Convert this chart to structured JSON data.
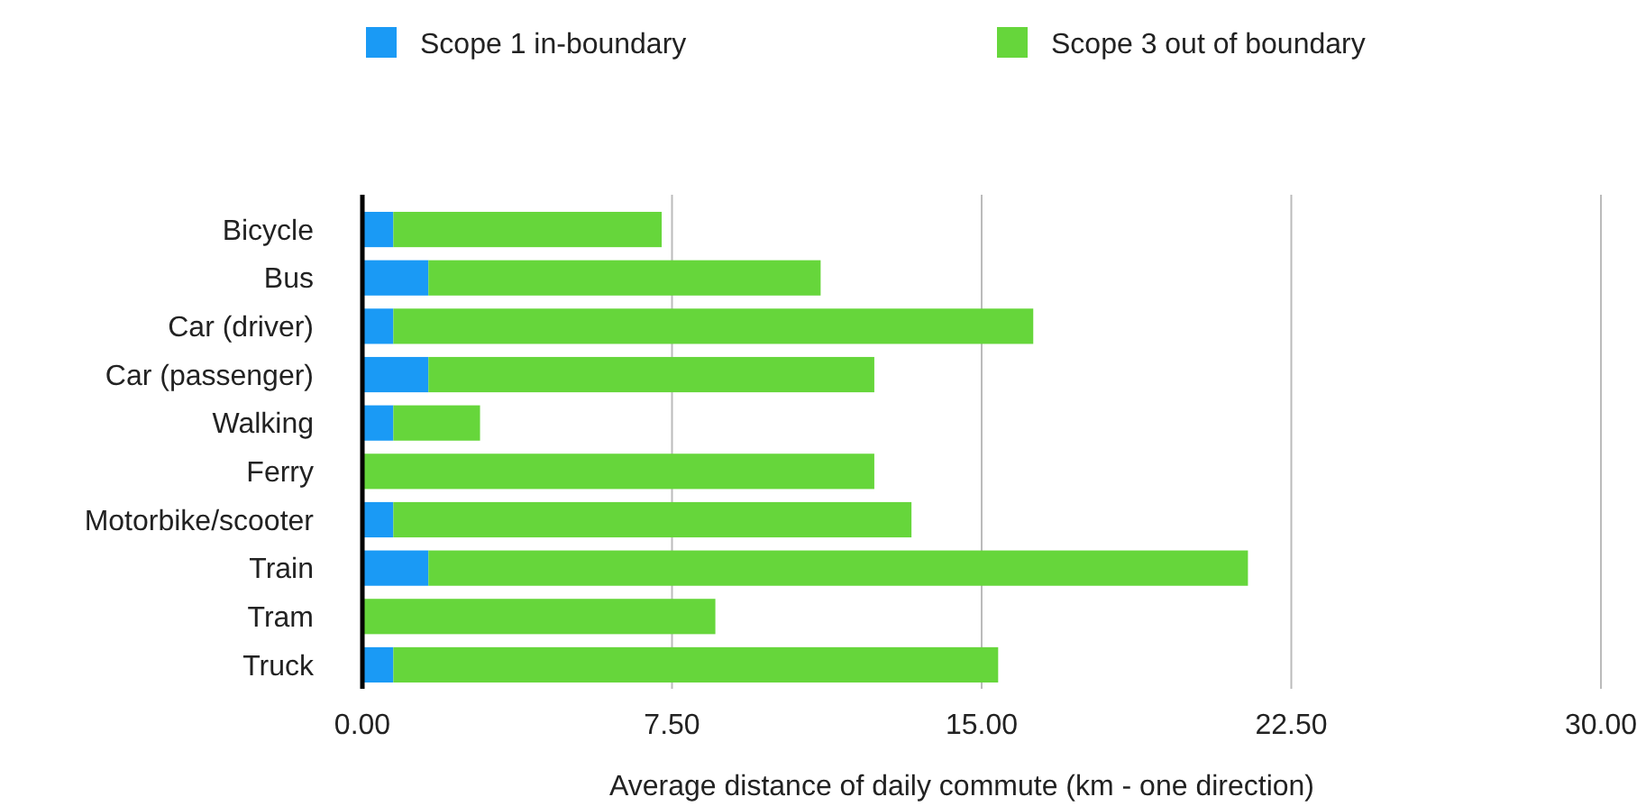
{
  "chart_data": {
    "type": "bar",
    "orientation": "horizontal",
    "stacked": true,
    "xlabel": "Average distance of daily commute (km - one direction)",
    "categories": [
      "Bicycle",
      "Bus",
      "Car (driver)",
      "Car (passenger)",
      "Walking",
      "Ferry",
      "Motorbike/scooter",
      "Train",
      "Tram",
      "Truck"
    ],
    "series": [
      {
        "name": "Scope 1 in-boundary",
        "color": "#1a9af5",
        "values": [
          0.75,
          1.6,
          0.75,
          1.6,
          0.75,
          0,
          0.75,
          1.6,
          0,
          0.75
        ]
      },
      {
        "name": "Scope 3 out of boundary",
        "color": "#66d63b",
        "values": [
          6.5,
          9.5,
          15.5,
          10.8,
          2.1,
          12.4,
          12.55,
          19.85,
          8.55,
          14.65
        ]
      }
    ],
    "xlim": [
      0,
      30
    ],
    "xticks": [
      {
        "value": 0,
        "label": "0.00"
      },
      {
        "value": 7.5,
        "label": "7.50"
      },
      {
        "value": 15,
        "label": "15.00"
      },
      {
        "value": 22.5,
        "label": "22.50"
      },
      {
        "value": 30,
        "label": "30.00"
      }
    ],
    "grid": "x",
    "legend": "top"
  }
}
